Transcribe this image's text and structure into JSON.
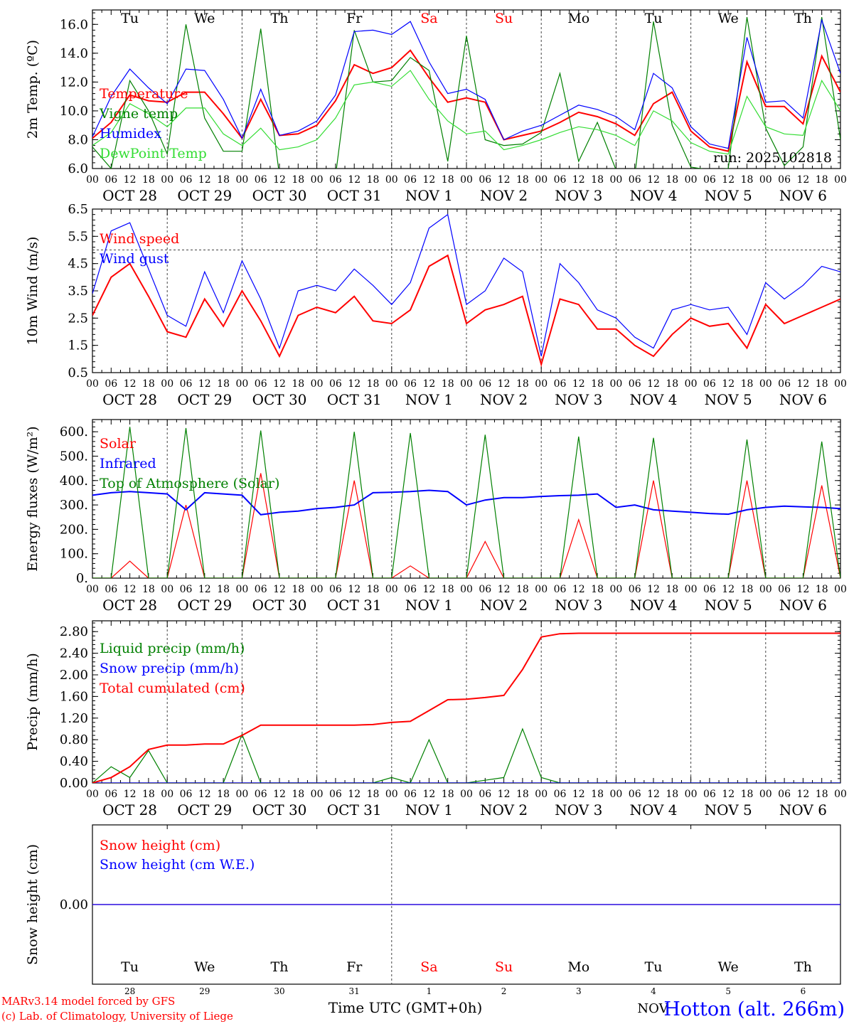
{
  "colors": {
    "red": "#ff0000",
    "green": "#008000",
    "blue": "#0000ff",
    "lightgreen": "#33dd33",
    "weekend": "#ff0000",
    "axis": "#000000",
    "grid": "#444444"
  },
  "days": [
    {
      "abbr": "Tu",
      "date": "OCT 28",
      "num": "28",
      "weekend": false
    },
    {
      "abbr": "We",
      "date": "OCT 29",
      "num": "29",
      "weekend": false
    },
    {
      "abbr": "Th",
      "date": "OCT 30",
      "num": "30",
      "weekend": false
    },
    {
      "abbr": "Fr",
      "date": "OCT 31",
      "num": "31",
      "weekend": false
    },
    {
      "abbr": "Sa",
      "date": "NOV  1",
      "num": "1",
      "weekend": true
    },
    {
      "abbr": "Su",
      "date": "NOV  2",
      "num": "2",
      "weekend": true
    },
    {
      "abbr": "Mo",
      "date": "NOV  3",
      "num": "3",
      "weekend": false
    },
    {
      "abbr": "Tu",
      "date": "NOV  4",
      "num": "4",
      "weekend": false
    },
    {
      "abbr": "We",
      "date": "NOV  5",
      "num": "5",
      "weekend": false
    },
    {
      "abbr": "Th",
      "date": "NOV  6",
      "num": "6",
      "weekend": false
    }
  ],
  "hour_ticks": [
    "00",
    "06",
    "12",
    "18"
  ],
  "hour_end_tick": "00",
  "run_label": "run: 2025102818",
  "footer": {
    "model": "MARv3.14 model forced by GFS",
    "lab": "(c) Lab. of Climatology, University of Liege",
    "time_axis": "Time UTC (GMT+0h)",
    "location": "Hotton (alt. 266m)",
    "month_overlay": "NOV"
  },
  "chart_data": [
    {
      "type": "line",
      "id": "temp",
      "ylabel": "2m Temp. (ºC)",
      "ylim": [
        6,
        17
      ],
      "yticks": [
        6.0,
        8.0,
        10.0,
        12.0,
        14.0,
        16.0
      ],
      "ytick_labels": [
        "6.0",
        "8.0",
        "10.0",
        "12.0",
        "14.0",
        "16.0"
      ],
      "x_hours": [
        0,
        6,
        12,
        18,
        24,
        30,
        36,
        42,
        48,
        54,
        60,
        66,
        72,
        78,
        84,
        90,
        96,
        102,
        108,
        114,
        120,
        126,
        132,
        138,
        144,
        150,
        156,
        162,
        168,
        174,
        180,
        186,
        192,
        198,
        204,
        210,
        216,
        222,
        228,
        234,
        240
      ],
      "series": [
        {
          "name": "Temperature",
          "color": "#ff0000",
          "values": [
            8.1,
            9.2,
            11.1,
            10.7,
            10.6,
            11.3,
            11.3,
            9.8,
            8.1,
            10.8,
            8.3,
            8.4,
            9.0,
            10.7,
            13.2,
            12.6,
            13.0,
            14.2,
            12.3,
            10.6,
            10.9,
            10.6,
            8.0,
            8.3,
            8.6,
            9.2,
            9.9,
            9.6,
            9.1,
            8.3,
            10.5,
            11.3,
            8.6,
            7.5,
            7.2,
            13.4,
            10.3,
            10.3,
            9.1,
            13.8,
            11.3
          ]
        },
        {
          "name": "Vigne temp",
          "color": "#008000",
          "values": [
            7.5,
            6.0,
            12.1,
            10.0,
            7.0,
            16.0,
            9.5,
            7.2,
            7.2,
            15.7,
            5.5,
            5.5,
            5.5,
            5.5,
            15.6,
            12.0,
            12.1,
            13.7,
            12.8,
            6.5,
            15.2,
            8.0,
            7.6,
            7.7,
            8.5,
            12.6,
            6.5,
            9.2,
            5.9,
            5.5,
            16.2,
            9.0,
            6.1,
            5.9,
            6.0,
            16.5,
            8.8,
            6.2,
            7.5,
            16.5,
            8.0
          ]
        },
        {
          "name": "Humidex",
          "color": "#0000ff",
          "values": [
            8.2,
            11.0,
            12.9,
            11.6,
            10.5,
            12.9,
            12.8,
            10.8,
            8.1,
            11.5,
            8.3,
            8.6,
            9.3,
            11.1,
            15.5,
            15.6,
            15.3,
            16.2,
            13.4,
            11.2,
            11.5,
            10.8,
            8.0,
            8.6,
            9.0,
            9.7,
            10.4,
            10.1,
            9.6,
            8.7,
            12.6,
            11.6,
            8.9,
            7.7,
            7.4,
            15.1,
            10.6,
            10.7,
            9.5,
            16.3,
            12.6
          ]
        },
        {
          "name": "DewPoint Temp",
          "color": "#33dd33",
          "values": [
            7.6,
            8.5,
            10.5,
            9.8,
            8.9,
            10.2,
            10.2,
            8.4,
            7.6,
            8.8,
            7.3,
            7.5,
            8.0,
            9.5,
            11.8,
            12.0,
            11.7,
            12.8,
            10.8,
            9.3,
            8.4,
            8.6,
            7.3,
            7.6,
            8.0,
            8.5,
            8.9,
            8.7,
            8.3,
            7.6,
            10.0,
            9.3,
            7.8,
            7.2,
            7.0,
            11.0,
            8.9,
            8.4,
            8.3,
            12.1,
            10.0
          ]
        }
      ]
    },
    {
      "type": "line",
      "id": "wind",
      "ylabel": "10m Wind (m/s)",
      "ylim": [
        0.5,
        6.5
      ],
      "yticks": [
        0.5,
        1.5,
        2.5,
        3.5,
        4.5,
        5.5,
        6.5
      ],
      "ytick_labels": [
        "0.5",
        "1.5",
        "2.5",
        "3.5",
        "4.5",
        "5.5",
        "6.5"
      ],
      "ref_line": 5.0,
      "x_hours": [
        0,
        6,
        12,
        18,
        24,
        30,
        36,
        42,
        48,
        54,
        60,
        66,
        72,
        78,
        84,
        90,
        96,
        102,
        108,
        114,
        120,
        126,
        132,
        138,
        144,
        150,
        156,
        162,
        168,
        174,
        180,
        186,
        192,
        198,
        204,
        210,
        216,
        222,
        228,
        234,
        240
      ],
      "series": [
        {
          "name": "Wind speed",
          "color": "#ff0000",
          "values": [
            2.6,
            4.0,
            4.5,
            3.3,
            2.0,
            1.8,
            3.2,
            2.2,
            3.5,
            2.4,
            1.1,
            2.6,
            2.9,
            2.7,
            3.3,
            2.4,
            2.3,
            2.8,
            4.4,
            4.8,
            2.3,
            2.8,
            3.0,
            3.3,
            0.8,
            3.2,
            3.0,
            2.1,
            2.1,
            1.5,
            1.1,
            1.9,
            2.5,
            2.2,
            2.3,
            1.4,
            3.0,
            2.3,
            2.6,
            2.9,
            3.2
          ]
        },
        {
          "name": "Wind gust",
          "color": "#0000ff",
          "values": [
            3.4,
            5.7,
            6.0,
            4.3,
            2.6,
            2.2,
            4.2,
            2.7,
            4.6,
            3.2,
            1.4,
            3.5,
            3.7,
            3.5,
            4.3,
            3.7,
            3.0,
            3.8,
            5.8,
            6.3,
            3.0,
            3.5,
            4.7,
            4.2,
            1.1,
            4.5,
            3.8,
            2.8,
            2.5,
            1.8,
            1.4,
            2.8,
            3.0,
            2.8,
            2.9,
            1.9,
            3.8,
            3.2,
            3.7,
            4.4,
            4.2
          ]
        }
      ]
    },
    {
      "type": "line",
      "id": "flux",
      "ylabel": "Energy fluxes (W/m²)",
      "ylim": [
        0,
        650
      ],
      "yticks": [
        0,
        100,
        200,
        300,
        400,
        500,
        600
      ],
      "ytick_labels": [
        "0.",
        "100.",
        "200.",
        "300.",
        "400.",
        "500.",
        "600."
      ],
      "x_hours": [
        0,
        6,
        12,
        18,
        24,
        30,
        36,
        42,
        48,
        54,
        60,
        66,
        72,
        78,
        84,
        90,
        96,
        102,
        108,
        114,
        120,
        126,
        132,
        138,
        144,
        150,
        156,
        162,
        168,
        174,
        180,
        186,
        192,
        198,
        204,
        210,
        216,
        222,
        228,
        234,
        240
      ],
      "series": [
        {
          "name": "Solar",
          "color": "#ff0000",
          "values": [
            0,
            0,
            70,
            0,
            0,
            300,
            0,
            0,
            0,
            430,
            0,
            0,
            0,
            0,
            400,
            0,
            0,
            50,
            0,
            0,
            0,
            150,
            0,
            0,
            0,
            0,
            240,
            0,
            0,
            0,
            400,
            0,
            0,
            0,
            0,
            400,
            0,
            0,
            0,
            380,
            0
          ]
        },
        {
          "name": "Infrared",
          "color": "#0000ff",
          "values": [
            340,
            350,
            355,
            350,
            345,
            280,
            350,
            345,
            340,
            260,
            270,
            275,
            285,
            290,
            300,
            350,
            352,
            355,
            360,
            355,
            300,
            320,
            330,
            330,
            335,
            338,
            340,
            345,
            290,
            300,
            280,
            275,
            270,
            265,
            262,
            280,
            290,
            295,
            292,
            290,
            285
          ]
        },
        {
          "name": "Top of Atmosphere (Solar)",
          "color": "#008000",
          "values": [
            0,
            0,
            620,
            0,
            0,
            615,
            0,
            0,
            0,
            605,
            0,
            0,
            0,
            0,
            600,
            0,
            0,
            595,
            0,
            0,
            0,
            588,
            0,
            0,
            0,
            0,
            580,
            0,
            0,
            0,
            575,
            0,
            0,
            0,
            0,
            568,
            0,
            0,
            0,
            560,
            0
          ]
        }
      ]
    },
    {
      "type": "line",
      "id": "precip",
      "ylabel": "Precip (mm/h)",
      "ylim": [
        0,
        3.0
      ],
      "yticks": [
        0,
        0.4,
        0.8,
        1.2,
        1.6,
        2.0,
        2.4,
        2.8
      ],
      "ytick_labels": [
        "0.00",
        "0.40",
        "0.80",
        "1.20",
        "1.60",
        "2.00",
        "2.40",
        "2.80"
      ],
      "x_hours": [
        0,
        6,
        12,
        18,
        24,
        30,
        36,
        42,
        48,
        54,
        60,
        66,
        72,
        78,
        84,
        90,
        96,
        102,
        108,
        114,
        120,
        126,
        132,
        138,
        144,
        150,
        156,
        162,
        168,
        174,
        180,
        186,
        192,
        198,
        204,
        210,
        216,
        222,
        228,
        234,
        240
      ],
      "series": [
        {
          "name": "Liquid precip (mm/h)",
          "color": "#008000",
          "values": [
            0,
            0.3,
            0.1,
            0.6,
            0,
            0,
            0,
            0,
            0.9,
            0,
            0,
            0,
            0,
            0,
            0,
            0,
            0.1,
            0,
            0.8,
            0,
            0,
            0.05,
            0.1,
            1.0,
            0.1,
            0,
            0,
            0,
            0,
            0,
            0,
            0,
            0,
            0,
            0,
            0,
            0,
            0,
            0,
            0,
            0
          ]
        },
        {
          "name": "Snow precip (mm/h)",
          "color": "#0000ff",
          "values": [
            0,
            0,
            0,
            0,
            0,
            0,
            0,
            0,
            0,
            0,
            0,
            0,
            0,
            0,
            0,
            0,
            0,
            0,
            0,
            0,
            0,
            0,
            0,
            0,
            0,
            0,
            0,
            0,
            0,
            0,
            0,
            0,
            0,
            0,
            0,
            0,
            0,
            0,
            0,
            0,
            0
          ]
        },
        {
          "name": "Total cumulated (cm)",
          "color": "#ff0000",
          "values": [
            0,
            0.1,
            0.3,
            0.62,
            0.7,
            0.7,
            0.72,
            0.72,
            0.88,
            1.07,
            1.07,
            1.07,
            1.07,
            1.07,
            1.07,
            1.08,
            1.12,
            1.14,
            1.34,
            1.54,
            1.55,
            1.58,
            1.62,
            2.1,
            2.7,
            2.76,
            2.77,
            2.77,
            2.77,
            2.77,
            2.77,
            2.77,
            2.77,
            2.77,
            2.77,
            2.77,
            2.77,
            2.77,
            2.77,
            2.77,
            2.77
          ]
        }
      ]
    },
    {
      "type": "line",
      "id": "snow",
      "ylabel": "Snow height (cm)",
      "ylim": [
        -1,
        1
      ],
      "yticks": [
        0
      ],
      "ytick_labels": [
        "0.00"
      ],
      "x_hours": [
        0,
        240
      ],
      "series": [
        {
          "name": "Snow height (cm)",
          "color": "#ff0000",
          "values": [
            0,
            0
          ]
        },
        {
          "name": "Snow height (cm W.E.)",
          "color": "#0000ff",
          "values": [
            0,
            0
          ]
        }
      ]
    }
  ]
}
